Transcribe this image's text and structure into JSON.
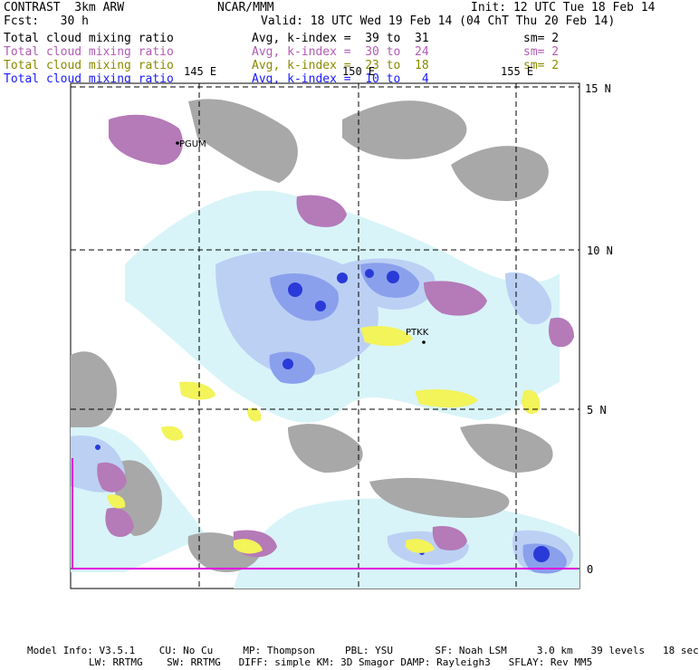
{
  "header": {
    "model": "CONTRAST  3km ARW",
    "center": "NCAR/MMM",
    "init": "Init: 12 UTC Tue 18 Feb 14",
    "fcst": "Fcst:   30 h",
    "valid": "Valid: 18 UTC Wed 19 Feb 14 (04 ChT Thu 20 Feb 14)"
  },
  "legend": [
    {
      "field": "Total cloud mixing ratio",
      "stat": "Avg, k-index =  39 to  31",
      "smooth": "sm= 2",
      "color": "#000000"
    },
    {
      "field": "Total cloud mixing ratio",
      "stat": "Avg, k-index =  30 to  24",
      "smooth": "sm= 2",
      "color": "#b25bb4"
    },
    {
      "field": "Total cloud mixing ratio",
      "stat": "Avg, k-index =  23 to  18",
      "smooth": "sm= 2",
      "color": "#8a8a00"
    },
    {
      "field": "Total cloud mixing ratio",
      "stat": "Avg, k-index =  10 to   4",
      "smooth": "",
      "color": "#1a1aff"
    }
  ],
  "map": {
    "lon_labels": [
      "145 E",
      "150 E",
      "155 E"
    ],
    "lat_labels": [
      "15 N",
      "10 N",
      "5 N",
      "0"
    ],
    "stations": [
      "PGUM",
      "PTKK"
    ],
    "colors": {
      "low_cloud_gray": "#a8a8a8",
      "purple": "#b57ab8",
      "yellow": "#f3f35a",
      "light_cyan": "#d8f4f8",
      "light_blue": "#bcd0f4",
      "mid_blue": "#8aa0ec",
      "deep_blue": "#2a3ad8"
    }
  },
  "footer": {
    "line1": "Model Info: V3.5.1    CU: No Cu     MP: Thompson     PBL: YSU       SF: Noah LSM     3.0 km   39 levels   18 sec",
    "line2": "LW: RRTMG    SW: RRTMG   DIFF: simple KM: 3D Smagor DAMP: Rayleigh3   SFLAY: Rev MM5"
  }
}
